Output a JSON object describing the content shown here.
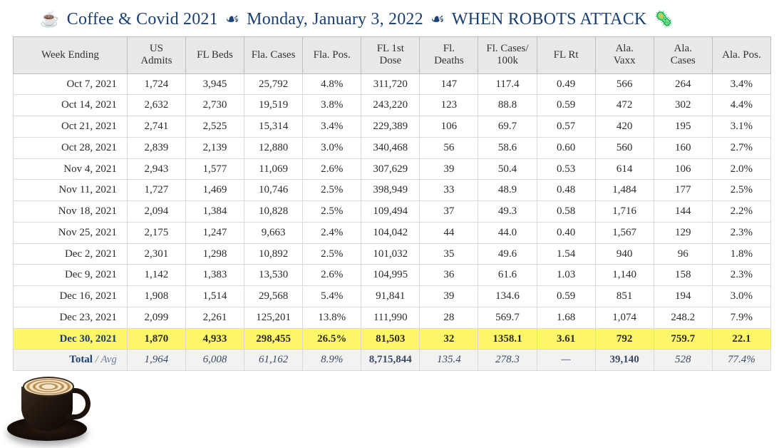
{
  "title": {
    "emoji_cup": "☕",
    "part1": "Coffee & Covid 2021",
    "sep": "☙",
    "part2": "Monday, January 3, 2022",
    "part3": "WHEN ROBOTS ATTACK",
    "emoji_virus": "🦠",
    "color": "#1a3f73",
    "fontsize": 24
  },
  "table": {
    "type": "table",
    "header_bg": "#e8e8e8",
    "border_color": "#d9d9d9",
    "highlight_bg": "#fff76a",
    "totals_bg": "#f2f2f2",
    "font_family": "Georgia",
    "cell_fontsize": 15,
    "columns": [
      "Week Ending",
      "US Admits",
      "FL Beds",
      "Fla. Cases",
      "Fla. Pos.",
      "FL 1st Dose",
      "Fl. Deaths",
      "Fl. Cases/ 100k",
      "FL Rt",
      "Ala. Vaxx",
      "Ala. Cases",
      "Ala. Pos."
    ],
    "rows": [
      [
        "Oct 7, 2021",
        "1,724",
        "3,945",
        "25,792",
        "4.8%",
        "311,720",
        "147",
        "117.4",
        "0.49",
        "566",
        "264",
        "3.4%"
      ],
      [
        "Oct 14, 2021",
        "2,632",
        "2,730",
        "19,519",
        "3.8%",
        "243,220",
        "123",
        "88.8",
        "0.59",
        "472",
        "302",
        "4.4%"
      ],
      [
        "Oct 21, 2021",
        "2,741",
        "2,525",
        "15,314",
        "3.4%",
        "229,389",
        "106",
        "69.7",
        "0.57",
        "420",
        "195",
        "3.1%"
      ],
      [
        "Oct 28, 2021",
        "2,839",
        "2,139",
        "12,880",
        "3.0%",
        "340,468",
        "56",
        "58.6",
        "0.60",
        "560",
        "160",
        "2.7%"
      ],
      [
        "Nov 4, 2021",
        "2,943",
        "1,577",
        "11,069",
        "2.6%",
        "307,629",
        "39",
        "50.4",
        "0.53",
        "614",
        "106",
        "2.0%"
      ],
      [
        "Nov 11, 2021",
        "1,727",
        "1,469",
        "10,746",
        "2.5%",
        "398,949",
        "33",
        "48.9",
        "0.48",
        "1,484",
        "177",
        "2.5%"
      ],
      [
        "Nov 18, 2021",
        "2,094",
        "1,384",
        "10,828",
        "2.5%",
        "109,494",
        "37",
        "49.3",
        "0.58",
        "1,716",
        "144",
        "2.2%"
      ],
      [
        "Nov 25, 2021",
        "2,175",
        "1,247",
        "9,663",
        "2.4%",
        "104,042",
        "44",
        "44.0",
        "0.40",
        "1,567",
        "129",
        "2.3%"
      ],
      [
        "Dec 2, 2021",
        "2,301",
        "1,298",
        "10,892",
        "2.5%",
        "101,032",
        "35",
        "49.6",
        "1.54",
        "940",
        "96",
        "1.8%"
      ],
      [
        "Dec 9, 2021",
        "1,142",
        "1,383",
        "13,530",
        "2.6%",
        "104,995",
        "36",
        "61.6",
        "1.03",
        "1,140",
        "158",
        "2.3%"
      ],
      [
        "Dec 16, 2021",
        "1,908",
        "1,514",
        "29,568",
        "5.4%",
        "91,841",
        "39",
        "134.6",
        "0.59",
        "851",
        "194",
        "3.0%"
      ],
      [
        "Dec 23, 2021",
        "2,099",
        "2,261",
        "125,201",
        "13.8%",
        "111,990",
        "28",
        "569.7",
        "1.68",
        "1,074",
        "248.2",
        "7.9%"
      ]
    ],
    "highlight_row": [
      "Dec 30, 2021",
      "1,870",
      "4,933",
      "298,455",
      "26.5%",
      "81,503",
      "32",
      "1358.1",
      "3.61",
      "792",
      "759.7",
      "22.1"
    ],
    "highlight_bold_cols": [
      2,
      3,
      4,
      6,
      7,
      8
    ],
    "totals_row": {
      "label_total": "Total",
      "label_avg": " / Avg",
      "cells": [
        "1,964",
        "6,008",
        "61,162",
        "8.9%",
        "8,715,844",
        "135.4",
        "278.3",
        "—",
        "39,140",
        "528",
        "77.4%"
      ],
      "bold_cols": [
        5,
        9
      ]
    }
  }
}
